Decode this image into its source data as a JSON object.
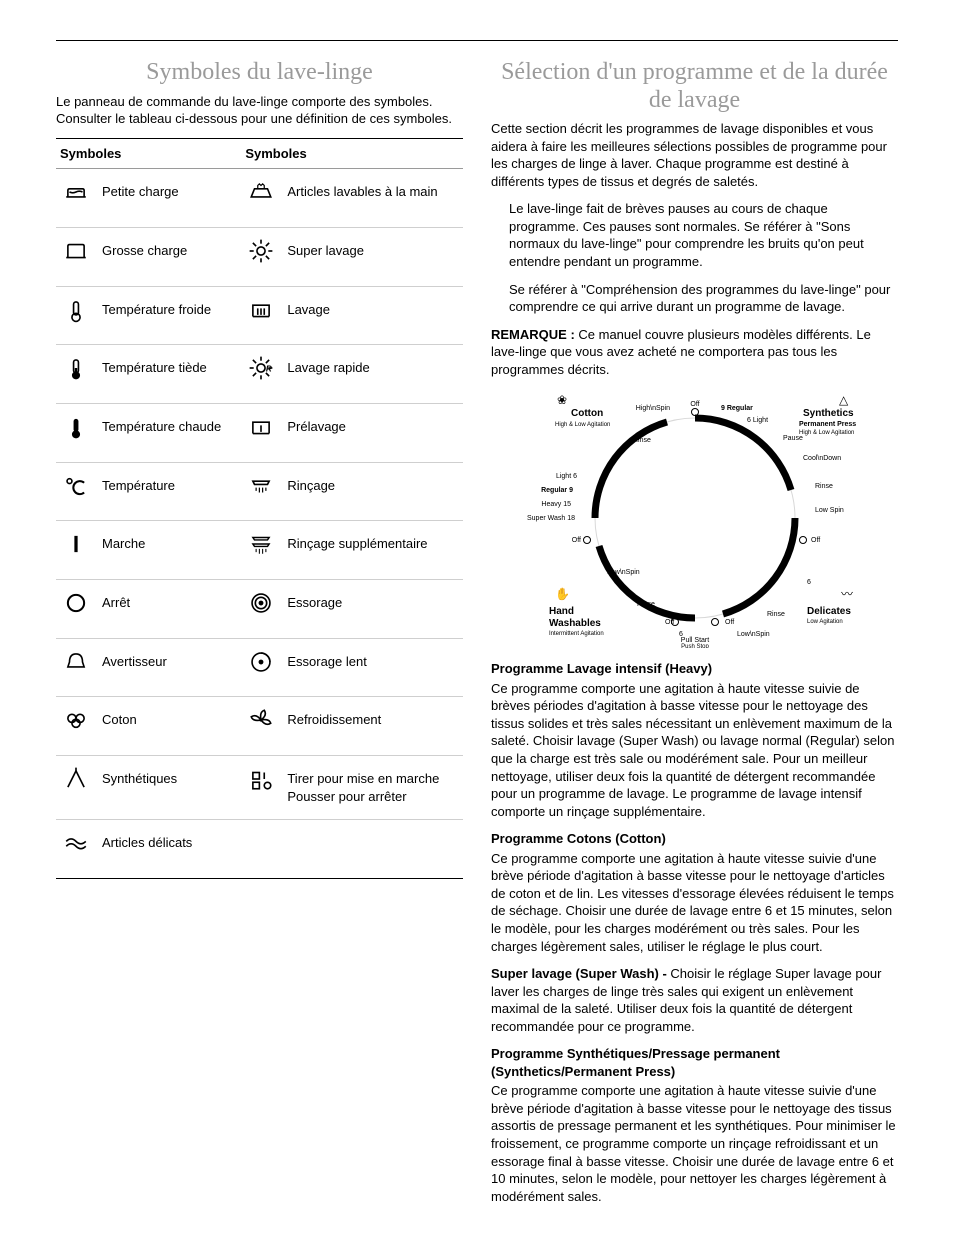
{
  "left": {
    "title": "Symboles du lave-linge",
    "intro": "Le panneau de commande du lave-linge comporte des symboles. Consulter le tableau ci-dessous pour une définition de ces symboles.",
    "headers": {
      "col1": "Symboles",
      "col2": "Symboles"
    },
    "rows": [
      {
        "icon1": "small-load",
        "label1": "Petite charge",
        "icon2": "hand-wash",
        "label2": "Articles lavables à la main"
      },
      {
        "icon1": "large-load",
        "label1": "Grosse charge",
        "icon2": "sun",
        "label2": "Super lavage"
      },
      {
        "icon1": "temp-cold",
        "label1": "Température froide",
        "icon2": "wash",
        "label2": "Lavage"
      },
      {
        "icon1": "temp-warm",
        "label1": "Température tiède",
        "icon2": "quick-wash",
        "label2": "Lavage rapide"
      },
      {
        "icon1": "temp-hot",
        "label1": "Température chaude",
        "icon2": "prewash",
        "label2": "Prélavage"
      },
      {
        "icon1": "temp-c",
        "label1": "Température",
        "icon2": "rinse",
        "label2": "Rinçage"
      },
      {
        "icon1": "on-bar",
        "label1": "Marche",
        "icon2": "extra-rinse",
        "label2": "Rinçage supplémentaire"
      },
      {
        "icon1": "off-circle",
        "label1": "Arrêt",
        "icon2": "spin",
        "label2": "Essorage"
      },
      {
        "icon1": "bell",
        "label1": "Avertisseur",
        "icon2": "slow-spin",
        "label2": "Essorage lent"
      },
      {
        "icon1": "cotton",
        "label1": "Coton",
        "icon2": "fan",
        "label2": "Refroidissement"
      },
      {
        "icon1": "synth",
        "label1": "Synthétiques",
        "icon2": "pull-push",
        "label2": "Tirer pour mise en marche\nPousser pour arrêter"
      },
      {
        "icon1": "delicate",
        "label1": "Articles délicats",
        "icon2": "",
        "label2": ""
      }
    ]
  },
  "right": {
    "title": "Sélection d'un programme et de la durée de lavage",
    "intro": "Cette section décrit les programmes de lavage disponibles et vous aidera à faire les meilleures sélections possibles de programme pour les charges de linge à laver. Chaque programme est destiné à différents types de tissus et degrés de saletés.",
    "bullets": [
      "Le lave-linge fait de brèves pauses au cours de chaque programme. Ces pauses sont normales. Se référer à \"Sons normaux du lave-linge\" pour comprendre les bruits qu'on peut entendre pendant un programme.",
      "Se référer à \"Compréhension des programmes du lave-linge\" pour comprendre ce qui arrive durant un programme de lavage."
    ],
    "note_label": "REMARQUE :",
    "note_body": " Ce manuel couvre plusieurs modèles différents. Le lave-linge que vous avez acheté ne comportera pas tous les programmes décrits.",
    "dial": {
      "quadrants": [
        {
          "name": "Cotton",
          "sub": "High & Low Agitation"
        },
        {
          "name": "Synthetics",
          "sub2": "Permanent Press",
          "sub": "High & Low Agitation"
        },
        {
          "name": "Hand Washables",
          "sub": "Intermittent Agitation"
        },
        {
          "name": "Delicates",
          "sub": "Low Agitation"
        }
      ],
      "cotton_marks": [
        "Light 6",
        "Regular 9",
        "Heavy 15",
        "Super Wash 18"
      ],
      "synth_marks": [
        "9 Regular",
        "6 Light",
        "Pause",
        "Cool Down",
        "Rinse",
        "Low Spin",
        "Off"
      ],
      "hand_marks": [
        "Off",
        "Low Spin",
        "Rinse",
        "6"
      ],
      "del_marks": [
        "Off",
        "Low Spin",
        "Rinse",
        "6"
      ],
      "top_marks": [
        "High Spin",
        "Off",
        "Rinse"
      ],
      "center": [
        "Pull Start",
        "Push Stop"
      ],
      "colors": {
        "ring": "#000000",
        "light": "#f2f2f2",
        "text": "#000000"
      }
    },
    "programs": [
      {
        "heading": "Programme Lavage intensif (Heavy)",
        "body": "Ce programme comporte une agitation à haute vitesse suivie de brèves périodes d'agitation à basse vitesse pour le nettoyage des tissus solides et très sales nécessitant un enlèvement maximum de la saleté. Choisir lavage (Super Wash) ou lavage normal (Regular) selon que la charge est très sale ou modérément sale. Pour un meilleur nettoyage, utiliser deux fois la quantité de détergent recommandée pour un programme de lavage. Le programme de lavage intensif comporte un rinçage supplémentaire."
      },
      {
        "heading": "Programme Cotons (Cotton)",
        "body": "Ce programme comporte une agitation à haute vitesse suivie d'une brève période d'agitation à basse vitesse pour le nettoyage d'articles de coton et de lin. Les vitesses d'essorage élevées réduisent le temps de séchage. Choisir une durée de lavage entre 6 et 15 minutes, selon le modèle, pour les charges modérément ou très sales. Pour les charges légèrement sales, utiliser le réglage le plus court."
      },
      {
        "runon_bold": "Super lavage (Super Wash) - ",
        "runon_body": "Choisir le réglage Super lavage pour laver les charges de linge très sales qui exigent un enlèvement maximal de la saleté. Utiliser deux fois la quantité de détergent recommandée pour ce programme."
      },
      {
        "heading": "Programme Synthétiques/Pressage permanent (Synthetics/Permanent Press)",
        "body": "Ce programme comporte une agitation à haute vitesse suivie d'une brève période d'agitation à basse vitesse pour le nettoyage des tissus assortis de pressage permanent et les synthétiques. Pour minimiser le froissement, ce programme comporte un rinçage refroidissant et un essorage final à basse vitesse. Choisir une durée de lavage entre 6 et 10 minutes, selon le modèle, pour nettoyer les charges légèrement à modérément sales."
      }
    ]
  },
  "style": {
    "heading_color": "#9a9a9a",
    "rule_color": "#000000",
    "row_divider": "#cfcfcf",
    "body_fontsize_pt": 10,
    "heading_fontsize_pt": 18
  }
}
